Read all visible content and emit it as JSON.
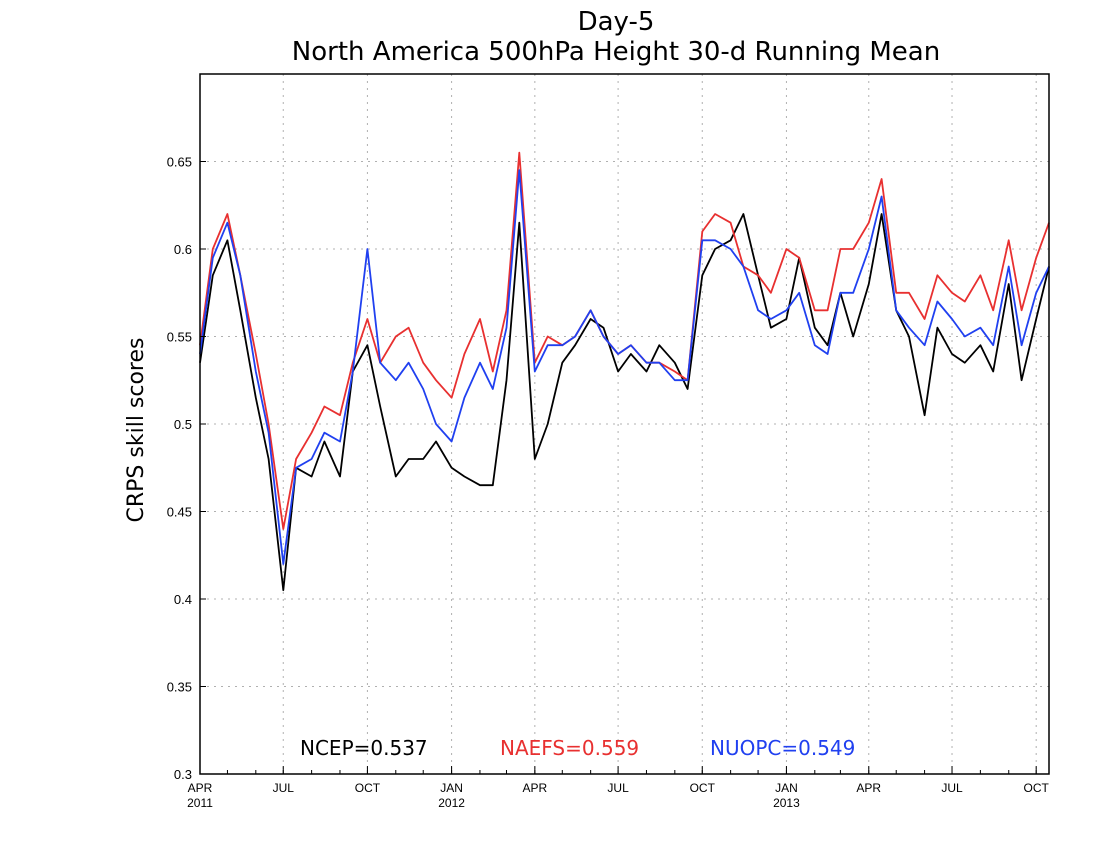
{
  "chart_data": {
    "type": "line",
    "title": "Day-5",
    "subtitle": "North America 500hPa Height 30-d Running Mean",
    "xlabel": "",
    "ylabel": "CRPS skill scores",
    "ylim": [
      0.3,
      0.7
    ],
    "xlim": [
      "2011-04-01",
      "2013-10-15"
    ],
    "grid": true,
    "legend_placement": "bottom-center",
    "y_ticks": [
      "0.3",
      "0.35",
      "0.4",
      "0.45",
      "0.5",
      "0.55",
      "0.6",
      "0.65"
    ],
    "x_ticks": [
      {
        "date": "2011-04-01",
        "label": "APR",
        "year": "2011"
      },
      {
        "date": "2011-07-01",
        "label": "JUL",
        "year": ""
      },
      {
        "date": "2011-10-01",
        "label": "OCT",
        "year": ""
      },
      {
        "date": "2012-01-01",
        "label": "JAN",
        "year": "2012"
      },
      {
        "date": "2012-04-01",
        "label": "APR",
        "year": ""
      },
      {
        "date": "2012-07-01",
        "label": "JUL",
        "year": ""
      },
      {
        "date": "2012-10-01",
        "label": "OCT",
        "year": ""
      },
      {
        "date": "2013-01-01",
        "label": "JAN",
        "year": "2013"
      },
      {
        "date": "2013-04-01",
        "label": "APR",
        "year": ""
      },
      {
        "date": "2013-07-01",
        "label": "JUL",
        "year": ""
      },
      {
        "date": "2013-10-01",
        "label": "OCT",
        "year": ""
      }
    ],
    "x": [
      "2011-04-01",
      "2011-04-15",
      "2011-05-01",
      "2011-05-15",
      "2011-06-01",
      "2011-06-15",
      "2011-07-01",
      "2011-07-15",
      "2011-08-01",
      "2011-08-15",
      "2011-09-01",
      "2011-09-15",
      "2011-10-01",
      "2011-10-15",
      "2011-11-01",
      "2011-11-15",
      "2011-12-01",
      "2011-12-15",
      "2012-01-01",
      "2012-01-15",
      "2012-02-01",
      "2012-02-15",
      "2012-03-01",
      "2012-03-15",
      "2012-04-01",
      "2012-04-15",
      "2012-05-01",
      "2012-05-15",
      "2012-06-01",
      "2012-06-15",
      "2012-07-01",
      "2012-07-15",
      "2012-08-01",
      "2012-08-15",
      "2012-09-01",
      "2012-09-15",
      "2012-10-01",
      "2012-10-15",
      "2012-11-01",
      "2012-11-15",
      "2012-12-01",
      "2012-12-15",
      "2013-01-01",
      "2013-01-15",
      "2013-02-01",
      "2013-02-15",
      "2013-03-01",
      "2013-03-15",
      "2013-04-01",
      "2013-04-15",
      "2013-05-01",
      "2013-05-15",
      "2013-06-01",
      "2013-06-15",
      "2013-07-01",
      "2013-07-15",
      "2013-08-01",
      "2013-08-15",
      "2013-09-01",
      "2013-09-15",
      "2013-10-01",
      "2013-10-15"
    ],
    "series": [
      {
        "name": "NCEP",
        "label": "NCEP=0.537",
        "color": "#000000",
        "values": [
          0.535,
          0.585,
          0.605,
          0.565,
          0.515,
          0.48,
          0.405,
          0.475,
          0.47,
          0.49,
          0.47,
          0.53,
          0.545,
          0.51,
          0.47,
          0.48,
          0.48,
          0.49,
          0.475,
          0.47,
          0.465,
          0.465,
          0.525,
          0.615,
          0.48,
          0.5,
          0.535,
          0.545,
          0.56,
          0.555,
          0.53,
          0.54,
          0.53,
          0.545,
          0.535,
          0.52,
          0.585,
          0.6,
          0.605,
          0.62,
          0.585,
          0.555,
          0.56,
          0.595,
          0.555,
          0.545,
          0.575,
          0.55,
          0.58,
          0.62,
          0.565,
          0.55,
          0.505,
          0.555,
          0.54,
          0.535,
          0.545,
          0.53,
          0.58,
          0.525,
          0.56,
          0.59
        ]
      },
      {
        "name": "NAEFS",
        "label": "NAEFS=0.559",
        "color": "#e83030",
        "values": [
          0.545,
          0.6,
          0.62,
          0.585,
          0.54,
          0.5,
          0.44,
          0.48,
          0.495,
          0.51,
          0.505,
          0.535,
          0.56,
          0.535,
          0.55,
          0.555,
          0.535,
          0.525,
          0.515,
          0.54,
          0.56,
          0.53,
          0.565,
          0.655,
          0.535,
          0.55,
          0.545,
          0.55,
          0.565,
          0.55,
          0.54,
          0.545,
          0.535,
          0.535,
          0.53,
          0.525,
          0.61,
          0.62,
          0.615,
          0.59,
          0.585,
          0.575,
          0.6,
          0.595,
          0.565,
          0.565,
          0.6,
          0.6,
          0.615,
          0.64,
          0.575,
          0.575,
          0.56,
          0.585,
          0.575,
          0.57,
          0.585,
          0.565,
          0.605,
          0.565,
          0.595,
          0.615
        ]
      },
      {
        "name": "NUOPC",
        "label": "NUOPC=0.549",
        "color": "#2040f0",
        "values": [
          0.54,
          0.595,
          0.615,
          0.585,
          0.53,
          0.495,
          0.42,
          0.475,
          0.48,
          0.495,
          0.49,
          0.53,
          0.6,
          0.535,
          0.525,
          0.535,
          0.52,
          0.5,
          0.49,
          0.515,
          0.535,
          0.52,
          0.555,
          0.645,
          0.53,
          0.545,
          0.545,
          0.55,
          0.565,
          0.55,
          0.54,
          0.545,
          0.535,
          0.535,
          0.525,
          0.525,
          0.605,
          0.605,
          0.6,
          0.59,
          0.565,
          0.56,
          0.565,
          0.575,
          0.545,
          0.54,
          0.575,
          0.575,
          0.6,
          0.63,
          0.565,
          0.555,
          0.545,
          0.57,
          0.56,
          0.55,
          0.555,
          0.545,
          0.59,
          0.545,
          0.575,
          0.59
        ]
      }
    ]
  }
}
